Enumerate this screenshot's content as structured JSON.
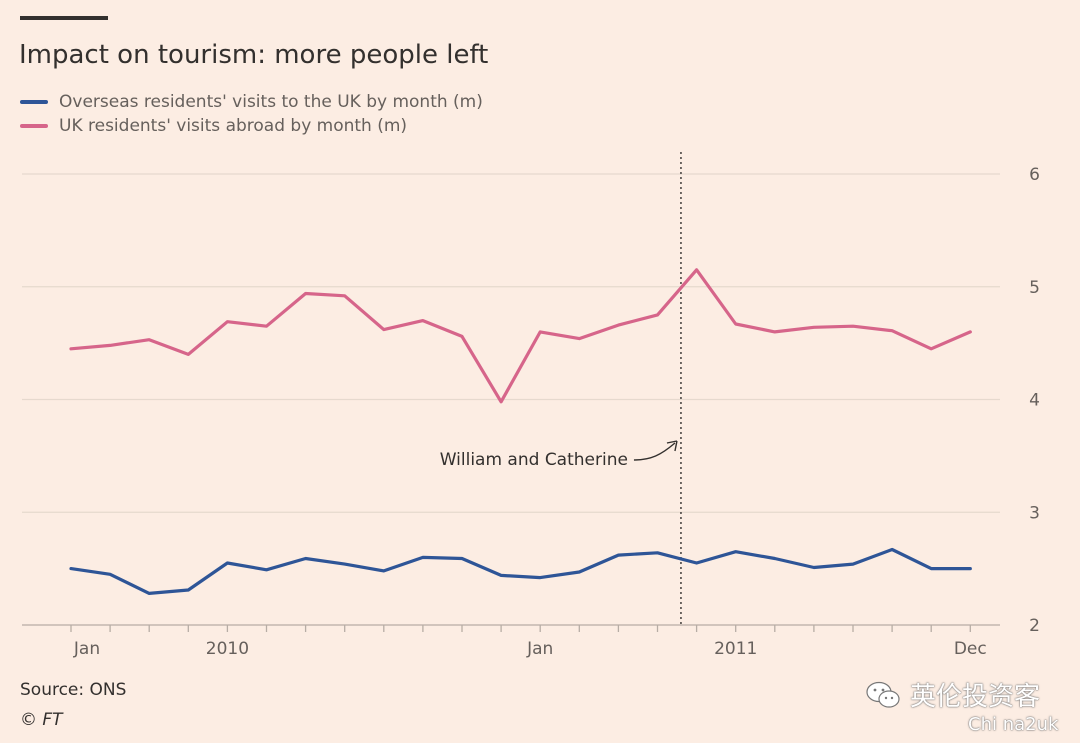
{
  "title": "Impact on tourism: more people left",
  "legend": [
    {
      "label": "Overseas residents' visits to the UK by month (m)",
      "color": "#2E5597"
    },
    {
      "label": "UK residents' visits abroad by month (m)",
      "color": "#D6658A"
    }
  ],
  "source": "Source: ONS",
  "credit_symbol": "©",
  "credit_brand": "FT",
  "watermark": "英伦投资客",
  "watermark_sub": "Chi na2uk",
  "chart_data": {
    "type": "line",
    "ylim": [
      2,
      6
    ],
    "yticks": [
      2,
      3,
      4,
      5,
      6
    ],
    "x": [
      1,
      2,
      3,
      4,
      5,
      6,
      7,
      8,
      9,
      10,
      11,
      12,
      13,
      14,
      15,
      16,
      17,
      18,
      19,
      20,
      21,
      22,
      23,
      24
    ],
    "x_tick_labels": [
      {
        "x": 1,
        "label": "Jan"
      },
      {
        "x": 5,
        "label": "2010"
      },
      {
        "x": 13,
        "label": "Jan"
      },
      {
        "x": 18,
        "label": "2011"
      },
      {
        "x": 24,
        "label": "Dec"
      }
    ],
    "series": [
      {
        "name": "Overseas residents' visits to the UK by month (m)",
        "color": "#2E5597",
        "values": [
          2.5,
          2.45,
          2.28,
          2.31,
          2.55,
          2.49,
          2.59,
          2.54,
          2.48,
          2.6,
          2.59,
          2.44,
          2.42,
          2.47,
          2.62,
          2.64,
          2.55,
          2.65,
          2.59,
          2.51,
          2.54,
          2.67,
          2.5,
          2.5
        ]
      },
      {
        "name": "UK residents' visits abroad by month (m)",
        "color": "#D6658A",
        "values": [
          4.45,
          4.48,
          4.53,
          4.4,
          4.69,
          4.65,
          4.94,
          4.92,
          4.62,
          4.7,
          4.56,
          3.98,
          4.6,
          4.54,
          4.66,
          4.75,
          5.15,
          4.67,
          4.6,
          4.64,
          4.65,
          4.61,
          4.45,
          4.6
        ]
      }
    ],
    "annotation": {
      "text": "William and Catherine",
      "x": 16.6
    },
    "grid": true,
    "yaxis_side": "right"
  }
}
